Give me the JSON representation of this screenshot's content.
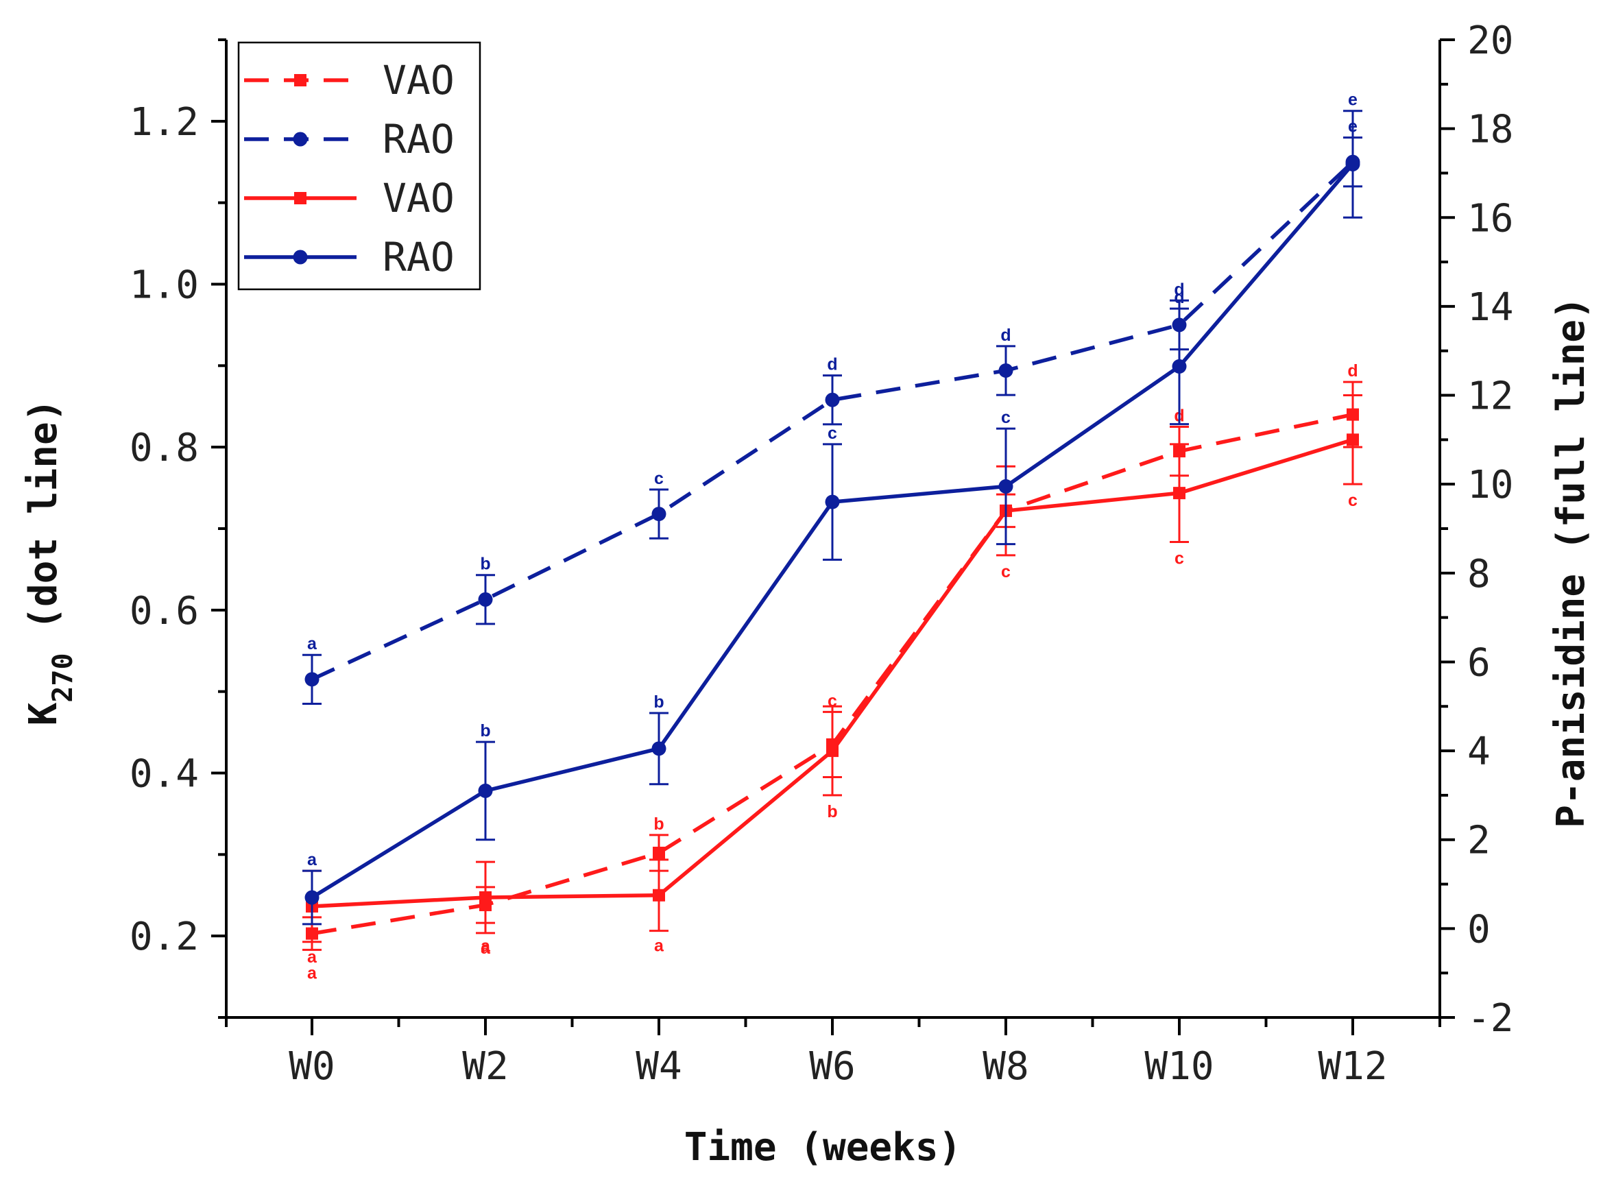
{
  "chart_data": {
    "type": "line",
    "categories": [
      "W0",
      "W2",
      "W4",
      "W6",
      "W8",
      "W10",
      "W12"
    ],
    "xlabel": "Time (weeks)",
    "ylabel_left": {
      "main": "K",
      "sub": "270",
      "rest": " (dot line)"
    },
    "ylabel_right": "P-anisidine (full line)",
    "ylim_left": [
      0.1,
      1.3
    ],
    "ylim_right": [
      -2,
      20
    ],
    "yticks_left": [
      "0.2",
      "0.4",
      "0.6",
      "0.8",
      "1.0",
      "1.2"
    ],
    "yticks_right": [
      "-2",
      "0",
      "2",
      "4",
      "6",
      "8",
      "10",
      "12",
      "14",
      "16",
      "18",
      "20"
    ],
    "grid": false,
    "legend_position": "top-left",
    "series": [
      {
        "name": "VAO",
        "axis": "left",
        "line": "dashed",
        "marker": "square",
        "color": "#ff1a1a",
        "values": [
          0.203,
          0.238,
          0.302,
          0.435,
          0.722,
          0.795,
          0.84
        ],
        "errors": [
          0.02,
          0.022,
          0.022,
          0.04,
          0.02,
          0.03,
          0.04
        ],
        "letters": [
          "a",
          "a",
          "b",
          "c",
          "c",
          "d",
          "d"
        ]
      },
      {
        "name": "RAO",
        "axis": "left",
        "line": "dashed",
        "marker": "circle",
        "color": "#0d1f9c",
        "values": [
          0.515,
          0.613,
          0.718,
          0.858,
          0.894,
          0.95,
          1.15
        ],
        "errors": [
          0.03,
          0.03,
          0.03,
          0.03,
          0.03,
          0.03,
          0.03
        ],
        "letters": [
          "a",
          "b",
          "c",
          "d",
          "d",
          "d",
          "e"
        ]
      },
      {
        "name": "VAO",
        "axis": "right",
        "line": "solid",
        "marker": "square",
        "color": "#ff1a1a",
        "values": [
          0.5,
          0.7,
          0.75,
          4.0,
          9.4,
          9.8,
          11.0
        ],
        "errors": [
          0.8,
          0.8,
          0.8,
          1.0,
          1.0,
          1.1,
          1.0
        ],
        "letters": [
          "a",
          "a",
          "a",
          "b",
          "c",
          "c",
          "c"
        ]
      },
      {
        "name": "RAO",
        "axis": "right",
        "line": "solid",
        "marker": "circle",
        "color": "#0d1f9c",
        "values": [
          0.7,
          3.1,
          4.05,
          9.6,
          9.95,
          12.65,
          17.2
        ],
        "errors": [
          0.6,
          1.1,
          0.8,
          1.3,
          1.3,
          1.3,
          1.2
        ],
        "letters": [
          "a",
          "b",
          "b",
          "c",
          "c",
          "d",
          "e"
        ]
      }
    ]
  }
}
